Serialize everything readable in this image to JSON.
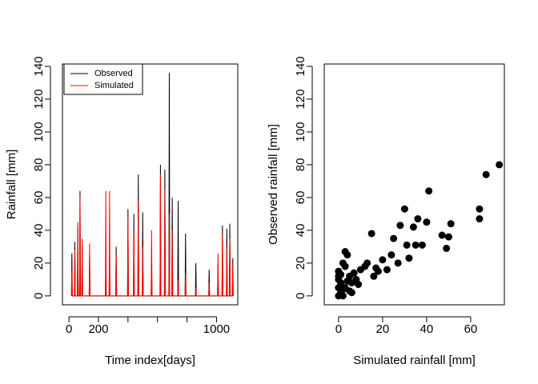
{
  "chart_data": [
    {
      "type": "line",
      "xlabel": "Time index[days]",
      "ylabel": "Rainfall [mm]",
      "legend": "topleft",
      "x": [
        17,
        20,
        23,
        37,
        40,
        43,
        57,
        60,
        63,
        72,
        75,
        78,
        87,
        90,
        93,
        137,
        140,
        143,
        247,
        250,
        253,
        272,
        275,
        278,
        317,
        320,
        323,
        397,
        400,
        403,
        437,
        440,
        443,
        467,
        470,
        473,
        497,
        500,
        503,
        557,
        560,
        563,
        617,
        620,
        623,
        647,
        650,
        653,
        677,
        680,
        683,
        697,
        700,
        703,
        737,
        740,
        743,
        787,
        790,
        793,
        857,
        860,
        863,
        947,
        950,
        953,
        1007,
        1010,
        1013,
        1037,
        1040,
        1043,
        1067,
        1070,
        1073,
        1087,
        1090,
        1093,
        1107,
        1110,
        1113
      ],
      "series": [
        {
          "name": "Observed",
          "color": "#000000",
          "values": [
            0,
            26,
            0,
            0,
            33,
            0,
            0,
            42,
            0,
            0,
            64,
            0,
            0,
            30,
            0,
            0,
            25,
            0,
            0,
            20,
            0,
            0,
            22,
            0,
            0,
            30,
            0,
            0,
            53,
            0,
            0,
            50,
            0,
            0,
            74,
            0,
            0,
            51,
            0,
            0,
            18,
            0,
            0,
            80,
            0,
            0,
            77,
            0,
            0,
            136,
            0,
            0,
            60,
            0,
            0,
            58,
            0,
            0,
            38,
            0,
            0,
            20,
            0,
            0,
            16,
            0,
            0,
            20,
            0,
            0,
            43,
            0,
            0,
            41,
            0,
            0,
            44,
            0,
            0,
            23,
            0
          ]
        },
        {
          "name": "Simulated",
          "color": "#ff0000",
          "values": [
            0,
            16,
            0,
            0,
            28,
            0,
            0,
            45,
            0,
            0,
            60,
            0,
            0,
            35,
            0,
            0,
            32,
            0,
            0,
            64,
            0,
            0,
            64,
            0,
            0,
            25,
            0,
            0,
            48,
            0,
            0,
            40,
            0,
            0,
            58,
            0,
            0,
            30,
            0,
            0,
            40,
            0,
            0,
            74,
            0,
            0,
            65,
            0,
            0,
            50,
            0,
            0,
            40,
            0,
            0,
            10,
            0,
            0,
            14,
            0,
            0,
            5,
            0,
            0,
            8,
            0,
            0,
            26,
            0,
            0,
            38,
            0,
            0,
            30,
            0,
            0,
            35,
            0,
            0,
            20,
            0
          ]
        }
      ],
      "xlim": [
        -44,
        1144
      ],
      "xticks": [
        0,
        200,
        {
          "value": 400,
          "label": null
        },
        {
          "value": 600,
          "label": null
        },
        {
          "value": 800,
          "label": null
        },
        1000
      ],
      "ylim": [
        -5.44,
        141.44
      ],
      "yticks": [
        0,
        20,
        40,
        60,
        80,
        100,
        120,
        140
      ]
    },
    {
      "type": "scatter",
      "xlabel": "Simulated rainfall [mm]",
      "ylabel": "Observed rainfall [mm]",
      "color": "#000000",
      "x": [
        0,
        0,
        0,
        0,
        1,
        1,
        1,
        2,
        2,
        3,
        3,
        4,
        5,
        5,
        6,
        7,
        8,
        9,
        10,
        12,
        13,
        15,
        16,
        17,
        18,
        20,
        22,
        24,
        25,
        27,
        28,
        30,
        31,
        32,
        34,
        35,
        36,
        38,
        40,
        41,
        47,
        49,
        50,
        51,
        64,
        64,
        67,
        73,
        0,
        1,
        2,
        4,
        3,
        6
      ],
      "y": [
        0,
        5,
        10,
        15,
        2,
        8,
        13,
        0,
        20,
        5,
        27,
        25,
        3,
        12,
        8,
        14,
        10,
        7,
        16,
        18,
        20,
        38,
        12,
        17,
        15,
        22,
        16,
        25,
        35,
        20,
        43,
        53,
        31,
        23,
        42,
        31,
        47,
        31,
        45,
        64,
        37,
        29,
        36,
        44,
        53,
        47,
        74,
        80,
        12,
        6,
        4,
        9,
        18,
        2
      ],
      "xlim": [
        -6.5,
        75.3
      ],
      "xticks": [
        0,
        20,
        40,
        60
      ],
      "ylim": [
        -5.44,
        141.44
      ],
      "yticks": [
        0,
        20,
        40,
        60,
        80,
        100,
        120,
        140
      ]
    }
  ]
}
